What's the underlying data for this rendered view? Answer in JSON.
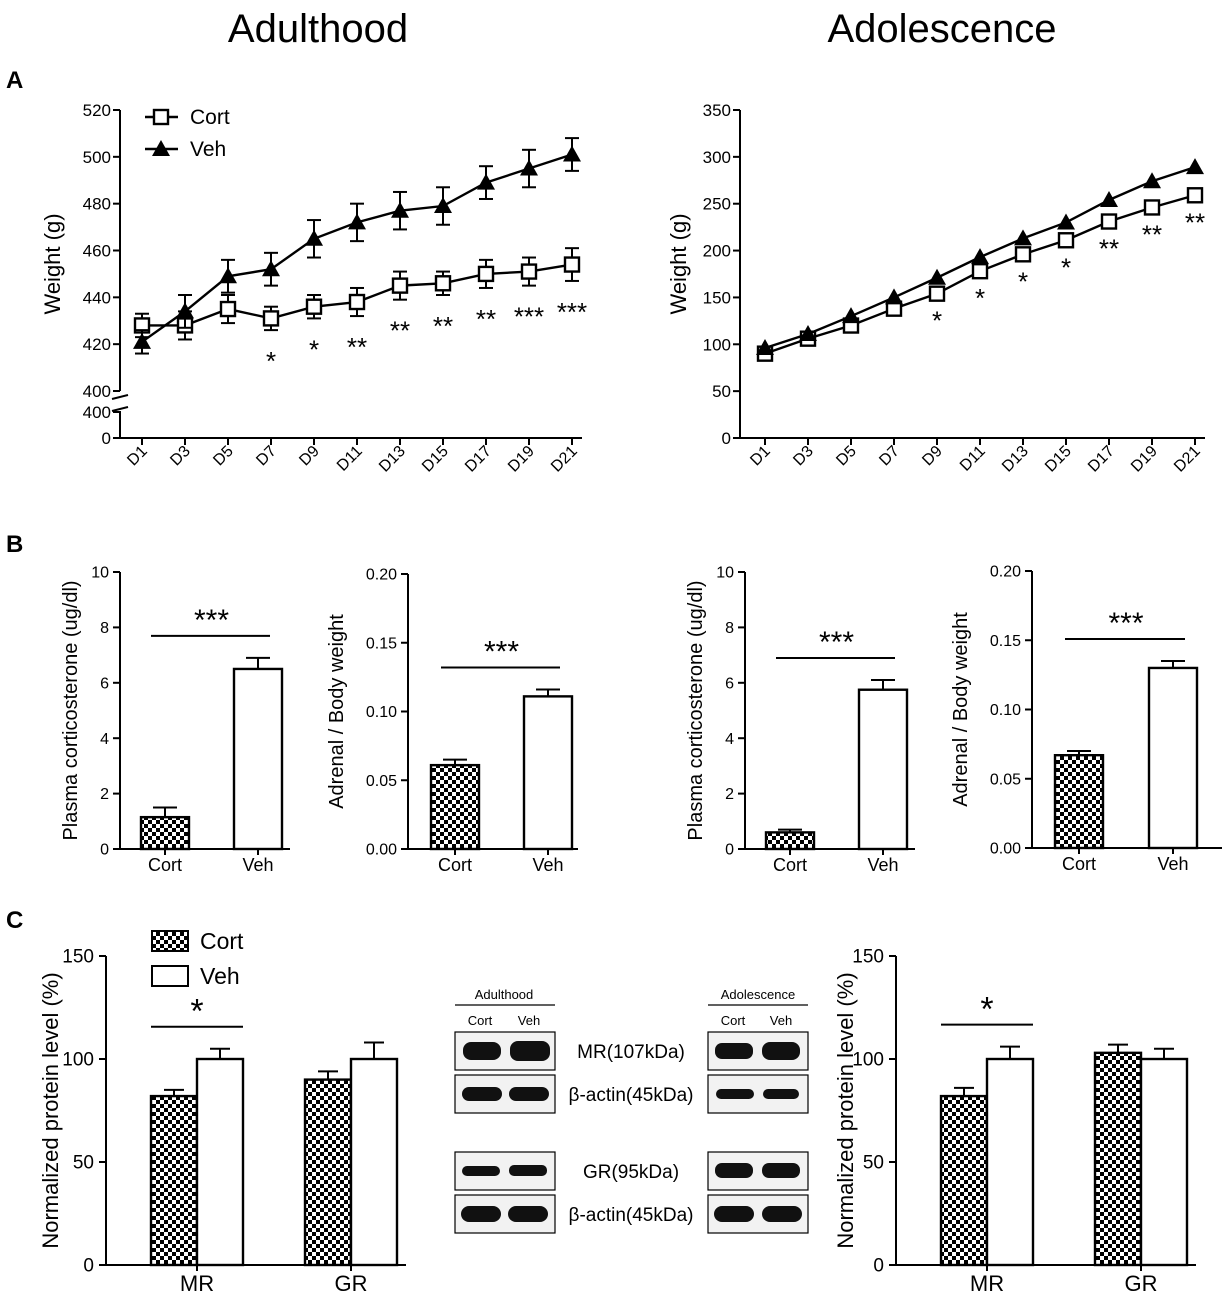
{
  "titles": {
    "left": "Adulthood",
    "right": "Adolescence"
  },
  "panel_labels": {
    "a": "A",
    "b": "B",
    "c": "C"
  },
  "colors": {
    "ink": "#000000",
    "background": "#ffffff",
    "blot_band": "#111111",
    "blot_background": "#f2f2f2"
  },
  "legend": {
    "cort": "Cort",
    "veh": "Veh"
  },
  "chart_data": [
    {
      "id": "A-adult",
      "type": "line",
      "ylabel": "Weight (g)",
      "x": [
        "D1",
        "D3",
        "D5",
        "D7",
        "D9",
        "D11",
        "D13",
        "D15",
        "D17",
        "D19",
        "D21"
      ],
      "ylim": [
        400,
        520
      ],
      "yticks": [
        400,
        420,
        440,
        460,
        480,
        500,
        520
      ],
      "axis_break": {
        "lower_ticks": [
          "0",
          "400"
        ]
      },
      "series": [
        {
          "name": "Cort",
          "marker": "open-square",
          "values": [
            428,
            428,
            435,
            431,
            436,
            438,
            445,
            446,
            450,
            451,
            454
          ],
          "errors": [
            5,
            6,
            6,
            5,
            5,
            6,
            6,
            5,
            6,
            6,
            7
          ]
        },
        {
          "name": "Veh",
          "marker": "filled-triangle",
          "values": [
            421,
            434,
            449,
            452,
            465,
            472,
            477,
            479,
            489,
            495,
            501
          ],
          "errors": [
            5,
            7,
            7,
            7,
            8,
            8,
            8,
            8,
            7,
            8,
            7
          ]
        }
      ],
      "significance": [
        "",
        "",
        "",
        "*",
        "*",
        "**",
        "**",
        "**",
        "**",
        "***",
        "***"
      ]
    },
    {
      "id": "A-adol",
      "type": "line",
      "ylabel": "Weight (g)",
      "x": [
        "D1",
        "D3",
        "D5",
        "D7",
        "D9",
        "D11",
        "D13",
        "D15",
        "D17",
        "D19",
        "D21"
      ],
      "ylim": [
        0,
        350
      ],
      "yticks": [
        0,
        50,
        100,
        150,
        200,
        250,
        300,
        350
      ],
      "series": [
        {
          "name": "Cort",
          "marker": "open-square",
          "values": [
            90,
            106,
            120,
            138,
            154,
            178,
            196,
            211,
            231,
            246,
            259
          ]
        },
        {
          "name": "Veh",
          "marker": "filled-triangle",
          "values": [
            96,
            111,
            130,
            150,
            171,
            193,
            213,
            230,
            254,
            274,
            289
          ]
        }
      ],
      "significance": [
        "",
        "",
        "",
        "",
        "*",
        "*",
        "*",
        "*",
        "**",
        "**",
        "**"
      ]
    },
    {
      "id": "B-adult-plasma",
      "type": "bar",
      "ylabel": "Plasma corticosterone (ug/dl)",
      "categories": [
        "Cort",
        "Veh"
      ],
      "values": [
        1.15,
        6.5
      ],
      "errors": [
        0.35,
        0.4
      ],
      "fills": [
        "checker",
        "white"
      ],
      "ylim": [
        0,
        10
      ],
      "yticks": [
        "0",
        "2",
        "4",
        "6",
        "8",
        "10"
      ],
      "significance": "***"
    },
    {
      "id": "B-adult-adrenal",
      "type": "bar",
      "ylabel": "Adrenal / Body weight",
      "categories": [
        "Cort",
        "Veh"
      ],
      "values": [
        0.061,
        0.111
      ],
      "errors": [
        0.004,
        0.005
      ],
      "fills": [
        "checker",
        "white"
      ],
      "ylim": [
        0,
        0.2
      ],
      "yticks": [
        "0.00",
        "0.05",
        "0.10",
        "0.15",
        "0.20"
      ],
      "significance": "***"
    },
    {
      "id": "B-adol-plasma",
      "type": "bar",
      "ylabel": "Plasma corticosterone (ug/dl)",
      "categories": [
        "Cort",
        "Veh"
      ],
      "values": [
        0.6,
        5.75
      ],
      "errors": [
        0.1,
        0.35
      ],
      "fills": [
        "checker",
        "white"
      ],
      "ylim": [
        0,
        10
      ],
      "yticks": [
        "0",
        "2",
        "4",
        "6",
        "8",
        "10"
      ],
      "significance": "***"
    },
    {
      "id": "B-adol-adrenal",
      "type": "bar",
      "ylabel": "Adrenal / Body weight",
      "categories": [
        "Cort",
        "Veh"
      ],
      "values": [
        0.067,
        0.13
      ],
      "errors": [
        0.003,
        0.005
      ],
      "fills": [
        "checker",
        "white"
      ],
      "ylim": [
        0,
        0.2
      ],
      "yticks": [
        "0.00",
        "0.05",
        "0.10",
        "0.15",
        "0.20"
      ],
      "significance": "***"
    },
    {
      "id": "C-adult",
      "type": "bar",
      "ylabel": "Normalized protein level (%)",
      "categories": [
        "MR",
        "GR"
      ],
      "series": [
        {
          "name": "Cort",
          "fill": "checker",
          "values": [
            82,
            90
          ],
          "errors": [
            3,
            4
          ]
        },
        {
          "name": "Veh",
          "fill": "white",
          "values": [
            100,
            100
          ],
          "errors": [
            5,
            8
          ]
        }
      ],
      "ylim": [
        0,
        150
      ],
      "yticks": [
        "0",
        "50",
        "100",
        "150"
      ],
      "significance": [
        "*",
        ""
      ]
    },
    {
      "id": "C-adol",
      "type": "bar",
      "ylabel": "Normalized protein level (%)",
      "categories": [
        "MR",
        "GR"
      ],
      "series": [
        {
          "name": "Cort",
          "fill": "checker",
          "values": [
            82,
            103
          ],
          "errors": [
            4,
            4
          ]
        },
        {
          "name": "Veh",
          "fill": "white",
          "values": [
            100,
            100
          ],
          "errors": [
            6,
            5
          ]
        }
      ],
      "ylim": [
        0,
        150
      ],
      "yticks": [
        "0",
        "50",
        "100",
        "150"
      ],
      "significance": [
        "*",
        ""
      ]
    }
  ],
  "blot": {
    "groups": {
      "adult": "Adulthood",
      "adol": "Adolescence"
    },
    "lanes": {
      "cort": "Cort",
      "veh": "Veh"
    },
    "labels": {
      "mr": "MR(107kDa)",
      "actin1": "β-actin(45kDa)",
      "gr": "GR(95kDa)",
      "actin2": "β-actin(45kDa)"
    }
  }
}
